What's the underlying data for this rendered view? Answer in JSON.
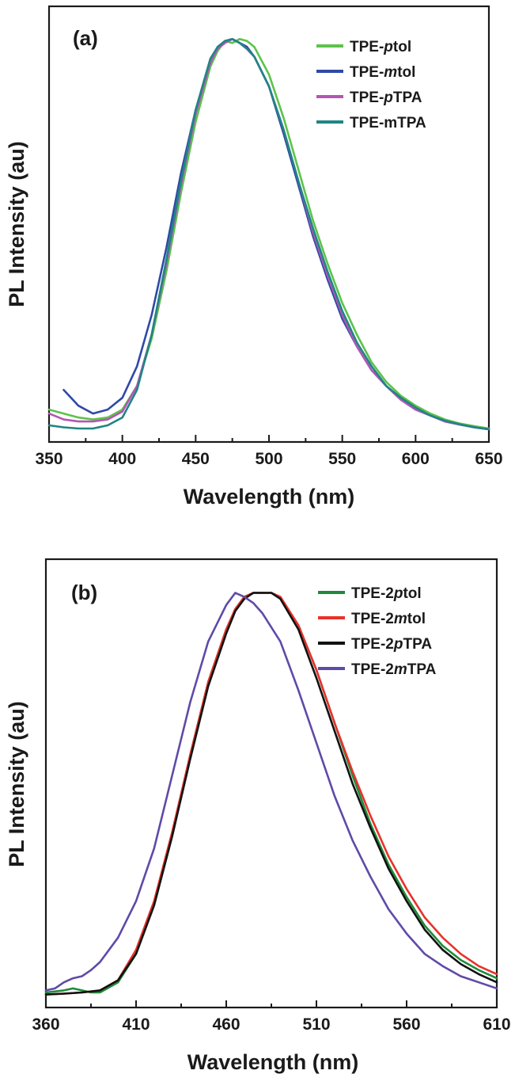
{
  "chart_data": [
    {
      "type": "line",
      "panel_label": "(a)",
      "xlabel": "Wavelength (nm)",
      "ylabel": "PL Intensity (au)",
      "xlim": [
        350,
        650
      ],
      "ylim": [
        0,
        1.0
      ],
      "x_ticks": [
        350,
        400,
        450,
        500,
        550,
        600,
        650
      ],
      "x_tick_labels": [
        "350",
        "400",
        "450",
        "500",
        "550",
        "600",
        "650"
      ],
      "grid": false,
      "legend_position": "top-right",
      "series": [
        {
          "name_main": "TPE-",
          "name_italic": "p",
          "name_tail": "tol",
          "color": "#5cc34a",
          "x": [
            350,
            360,
            370,
            380,
            390,
            400,
            410,
            420,
            430,
            440,
            450,
            460,
            465,
            470,
            475,
            480,
            485,
            490,
            500,
            510,
            520,
            530,
            540,
            550,
            560,
            570,
            580,
            590,
            600,
            610,
            620,
            630,
            640,
            650
          ],
          "y": [
            0.06,
            0.05,
            0.04,
            0.035,
            0.04,
            0.06,
            0.12,
            0.24,
            0.41,
            0.61,
            0.79,
            0.93,
            0.97,
            0.995,
            0.99,
            1.0,
            0.995,
            0.98,
            0.91,
            0.8,
            0.67,
            0.54,
            0.43,
            0.33,
            0.25,
            0.18,
            0.13,
            0.095,
            0.07,
            0.05,
            0.035,
            0.025,
            0.018,
            0.012
          ]
        },
        {
          "name_main": "TPE-",
          "name_italic": "m",
          "name_tail": "tol",
          "color": "#2f49a6",
          "x": [
            360,
            370,
            380,
            390,
            400,
            410,
            420,
            430,
            440,
            450,
            460,
            465,
            470,
            475,
            480,
            485,
            490,
            500,
            510,
            520,
            530,
            540,
            550,
            560,
            570,
            580,
            590,
            600,
            610,
            620,
            630,
            640,
            650
          ],
          "y": [
            0.11,
            0.07,
            0.05,
            0.06,
            0.09,
            0.17,
            0.3,
            0.47,
            0.66,
            0.82,
            0.94,
            0.98,
            0.995,
            1.0,
            0.99,
            0.98,
            0.955,
            0.88,
            0.76,
            0.63,
            0.5,
            0.39,
            0.29,
            0.22,
            0.16,
            0.12,
            0.085,
            0.06,
            0.045,
            0.03,
            0.022,
            0.015,
            0.01
          ]
        },
        {
          "name_main": "TPE-",
          "name_italic": "p",
          "name_tail": "TPA",
          "color": "#b356b5",
          "x": [
            350,
            360,
            370,
            380,
            390,
            400,
            410,
            420,
            430,
            440,
            450,
            460,
            465,
            470,
            475,
            480,
            485,
            490,
            500,
            510,
            520,
            530,
            540,
            550,
            560,
            570,
            580,
            590,
            600,
            610,
            620,
            630,
            640,
            650
          ],
          "y": [
            0.05,
            0.035,
            0.03,
            0.03,
            0.035,
            0.055,
            0.12,
            0.25,
            0.43,
            0.63,
            0.81,
            0.94,
            0.975,
            0.99,
            1.0,
            0.99,
            0.975,
            0.955,
            0.88,
            0.77,
            0.64,
            0.51,
            0.4,
            0.3,
            0.22,
            0.16,
            0.12,
            0.085,
            0.06,
            0.045,
            0.03,
            0.022,
            0.015,
            0.01
          ]
        },
        {
          "name_main": "TPE-mTPA",
          "name_italic": "",
          "name_tail": "",
          "color": "#1f8585",
          "x": [
            350,
            360,
            370,
            380,
            390,
            400,
            410,
            420,
            430,
            440,
            450,
            460,
            465,
            470,
            475,
            480,
            485,
            490,
            500,
            510,
            520,
            530,
            540,
            550,
            560,
            570,
            580,
            590,
            600,
            610,
            620,
            630,
            640,
            650
          ],
          "y": [
            0.02,
            0.015,
            0.012,
            0.012,
            0.02,
            0.04,
            0.11,
            0.25,
            0.44,
            0.64,
            0.82,
            0.95,
            0.98,
            0.995,
            1.0,
            0.99,
            0.975,
            0.955,
            0.88,
            0.77,
            0.64,
            0.52,
            0.41,
            0.31,
            0.23,
            0.17,
            0.12,
            0.09,
            0.065,
            0.045,
            0.032,
            0.023,
            0.015,
            0.01
          ]
        }
      ]
    },
    {
      "type": "line",
      "panel_label": "(b)",
      "xlabel": "Wavelength (nm)",
      "ylabel": "PL Intensity (au)",
      "xlim": [
        360,
        610
      ],
      "ylim": [
        0,
        1.0
      ],
      "x_ticks": [
        360,
        410,
        460,
        510,
        560,
        610
      ],
      "x_tick_labels": [
        "360",
        "410",
        "460",
        "510",
        "560",
        "610"
      ],
      "grid": false,
      "legend_position": "top-right",
      "series": [
        {
          "name_main": "TPE-2",
          "name_italic": "p",
          "name_tail": "tol",
          "color": "#1f8a3c",
          "x": [
            360,
            370,
            375,
            380,
            385,
            390,
            400,
            410,
            420,
            430,
            440,
            450,
            460,
            465,
            470,
            475,
            480,
            485,
            490,
            500,
            510,
            520,
            530,
            540,
            550,
            560,
            570,
            580,
            590,
            600,
            610
          ],
          "y": [
            0.015,
            0.02,
            0.025,
            0.02,
            0.015,
            0.015,
            0.04,
            0.11,
            0.23,
            0.4,
            0.6,
            0.78,
            0.91,
            0.96,
            0.99,
            1.0,
            1.0,
            1.0,
            0.99,
            0.92,
            0.81,
            0.68,
            0.55,
            0.43,
            0.33,
            0.25,
            0.18,
            0.13,
            0.095,
            0.07,
            0.05
          ]
        },
        {
          "name_main": "TPE-2",
          "name_italic": "m",
          "name_tail": "tol",
          "color": "#e8322a",
          "x": [
            360,
            370,
            380,
            390,
            400,
            410,
            420,
            430,
            440,
            450,
            460,
            465,
            470,
            475,
            480,
            485,
            490,
            500,
            510,
            520,
            530,
            540,
            550,
            560,
            570,
            580,
            590,
            600,
            610
          ],
          "y": [
            0.01,
            0.012,
            0.015,
            0.02,
            0.045,
            0.12,
            0.24,
            0.41,
            0.6,
            0.78,
            0.91,
            0.96,
            0.99,
            1.0,
            1.0,
            1.0,
            0.99,
            0.92,
            0.81,
            0.68,
            0.56,
            0.45,
            0.35,
            0.27,
            0.2,
            0.15,
            0.11,
            0.08,
            0.06
          ]
        },
        {
          "name_main": "TPE-2",
          "name_italic": "p",
          "name_tail": "TPA",
          "color": "#111111",
          "x": [
            360,
            370,
            380,
            390,
            400,
            410,
            420,
            430,
            440,
            450,
            460,
            465,
            470,
            475,
            480,
            485,
            490,
            500,
            510,
            520,
            530,
            540,
            550,
            560,
            570,
            580,
            590,
            600,
            610
          ],
          "y": [
            0.01,
            0.012,
            0.015,
            0.02,
            0.045,
            0.11,
            0.23,
            0.4,
            0.59,
            0.77,
            0.9,
            0.955,
            0.985,
            1.0,
            1.0,
            1.0,
            0.985,
            0.91,
            0.79,
            0.66,
            0.53,
            0.42,
            0.32,
            0.24,
            0.17,
            0.12,
            0.085,
            0.06,
            0.04
          ]
        },
        {
          "name_main": "TPE-2",
          "name_italic": "m",
          "name_tail": "TPA",
          "color": "#5f4aa8",
          "x": [
            360,
            365,
            370,
            375,
            380,
            385,
            390,
            400,
            410,
            420,
            430,
            440,
            450,
            460,
            465,
            470,
            475,
            480,
            490,
            500,
            510,
            520,
            530,
            540,
            550,
            560,
            570,
            580,
            590,
            600,
            610
          ],
          "y": [
            0.02,
            0.025,
            0.04,
            0.05,
            0.055,
            0.07,
            0.09,
            0.15,
            0.24,
            0.37,
            0.55,
            0.73,
            0.88,
            0.97,
            1.0,
            0.99,
            0.975,
            0.95,
            0.88,
            0.76,
            0.63,
            0.5,
            0.39,
            0.3,
            0.22,
            0.16,
            0.11,
            0.08,
            0.055,
            0.04,
            0.025
          ]
        }
      ]
    }
  ]
}
